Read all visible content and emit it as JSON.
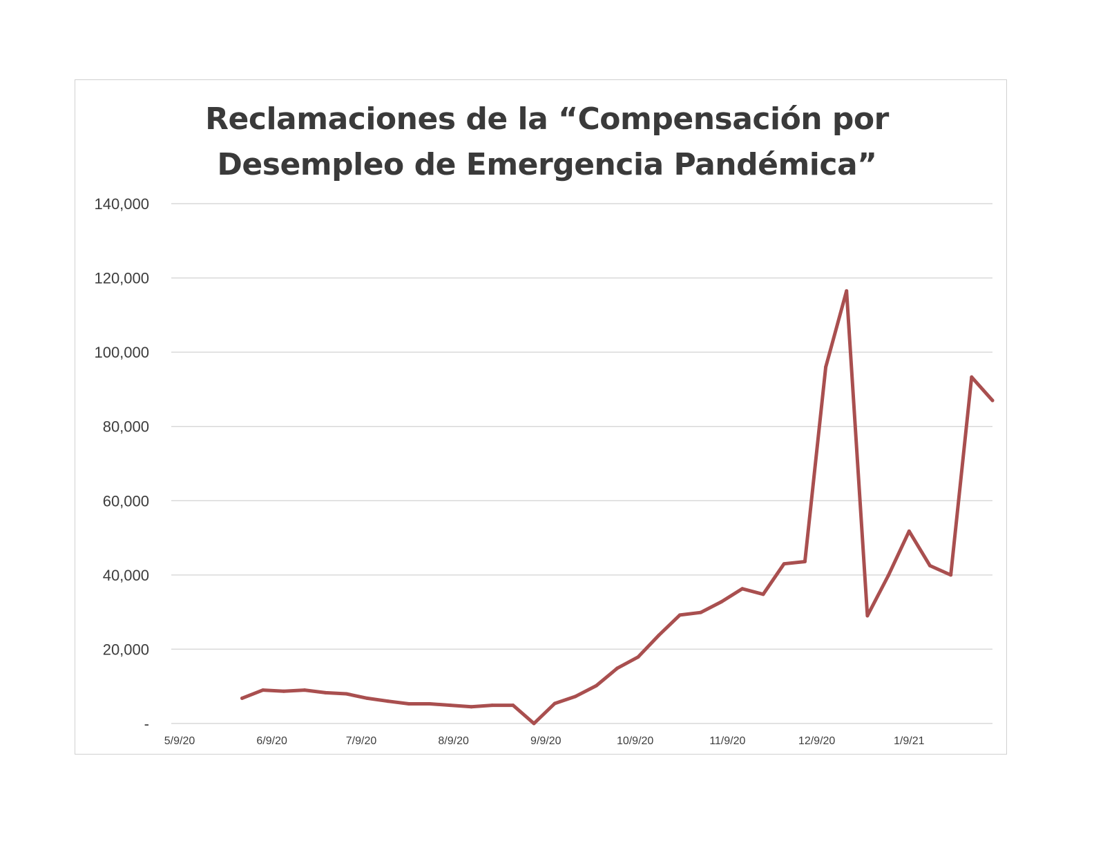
{
  "chart_data": {
    "type": "line",
    "title_lines": [
      "Reclamaciones de la “Compensación por",
      "Desempleo de Emergencia Pandémica”"
    ],
    "xlabel": "",
    "ylabel": "",
    "ylim": [
      0,
      140000
    ],
    "yticks": [
      0,
      20000,
      40000,
      60000,
      80000,
      100000,
      120000,
      140000
    ],
    "ytick_labels": [
      "-",
      "20,000",
      "40,000",
      "60,000",
      "80,000",
      "100,000",
      "120,000",
      "140,000"
    ],
    "xlim": [
      "2020-05-09",
      "2021-02-06"
    ],
    "xticks": [
      "2020-05-09",
      "2020-06-09",
      "2020-07-09",
      "2020-08-09",
      "2020-09-09",
      "2020-10-09",
      "2020-11-09",
      "2020-12-09",
      "2021-01-09"
    ],
    "xtick_labels": [
      "5/9/20",
      "6/9/20",
      "7/9/20",
      "8/9/20",
      "9/9/20",
      "10/9/20",
      "11/9/20",
      "12/9/20",
      "1/9/21"
    ],
    "grid": true,
    "legend": "none",
    "line_color": "#a94f4f",
    "gridline_color": "#d9d9d9",
    "series": [
      {
        "x": [
          "2020-05-30",
          "2020-06-06",
          "2020-06-13",
          "2020-06-20",
          "2020-06-27",
          "2020-07-04",
          "2020-07-11",
          "2020-07-18",
          "2020-07-25",
          "2020-08-01",
          "2020-08-08",
          "2020-08-15",
          "2020-08-22",
          "2020-08-29",
          "2020-09-05",
          "2020-09-12",
          "2020-09-19",
          "2020-09-26",
          "2020-10-03",
          "2020-10-10",
          "2020-10-17",
          "2020-10-24",
          "2020-10-31",
          "2020-11-07",
          "2020-11-14",
          "2020-11-21",
          "2020-11-28",
          "2020-12-05",
          "2020-12-12",
          "2020-12-19",
          "2020-12-26",
          "2021-01-02",
          "2021-01-09",
          "2021-01-16",
          "2021-01-23",
          "2021-01-30",
          "2021-02-06"
        ],
        "values": [
          6800,
          9000,
          8700,
          9000,
          8300,
          8000,
          6800,
          6000,
          5300,
          5300,
          4900,
          4500,
          4900,
          4900,
          0,
          5400,
          7300,
          10200,
          14900,
          17900,
          23800,
          29200,
          29900,
          32800,
          36300,
          34800,
          43000,
          43600,
          96000,
          116500,
          29000,
          39800,
          51800,
          42500,
          40000,
          93300,
          87000
        ]
      }
    ]
  }
}
